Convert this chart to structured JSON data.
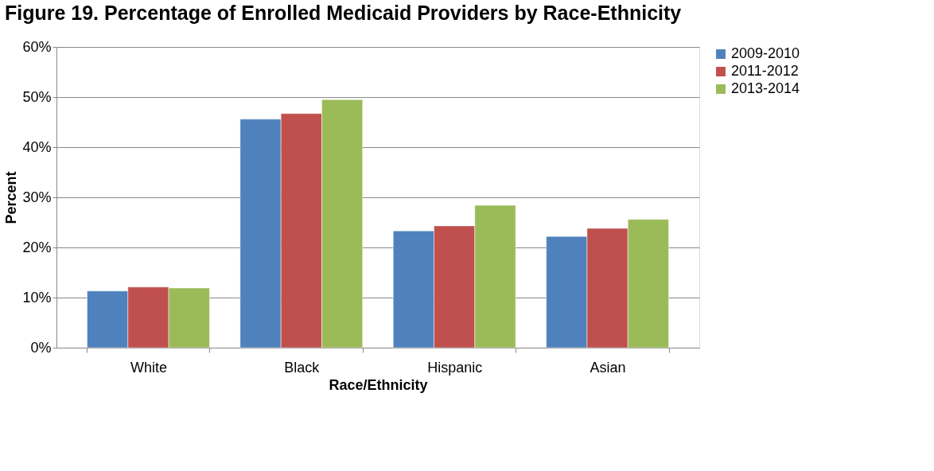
{
  "chart_data": {
    "type": "bar",
    "title": "Figure 19. Percentage of Enrolled Medicaid Providers by Race-Ethnicity",
    "xlabel": "Race/Ethnicity",
    "ylabel": "Percent",
    "categories": [
      "White",
      "Black",
      "Hispanic",
      "Asian"
    ],
    "series": [
      {
        "name": "2009-2010",
        "color": "#4f81bd",
        "values": [
          11.3,
          45.6,
          23.3,
          22.2
        ]
      },
      {
        "name": "2011-2012",
        "color": "#c0504d",
        "values": [
          12.1,
          46.7,
          24.3,
          23.8
        ]
      },
      {
        "name": "2013-2014",
        "color": "#9bbb59",
        "values": [
          11.9,
          49.5,
          28.4,
          25.6
        ]
      }
    ],
    "ylim": [
      0,
      60
    ],
    "yticks": [
      {
        "value": 0,
        "label": "0%"
      },
      {
        "value": 10,
        "label": "10%"
      },
      {
        "value": 20,
        "label": "20%"
      },
      {
        "value": 30,
        "label": "30%"
      },
      {
        "value": 40,
        "label": "40%"
      },
      {
        "value": 50,
        "label": "50%"
      },
      {
        "value": 60,
        "label": "60%"
      }
    ],
    "grid": "y",
    "legend": "right"
  }
}
